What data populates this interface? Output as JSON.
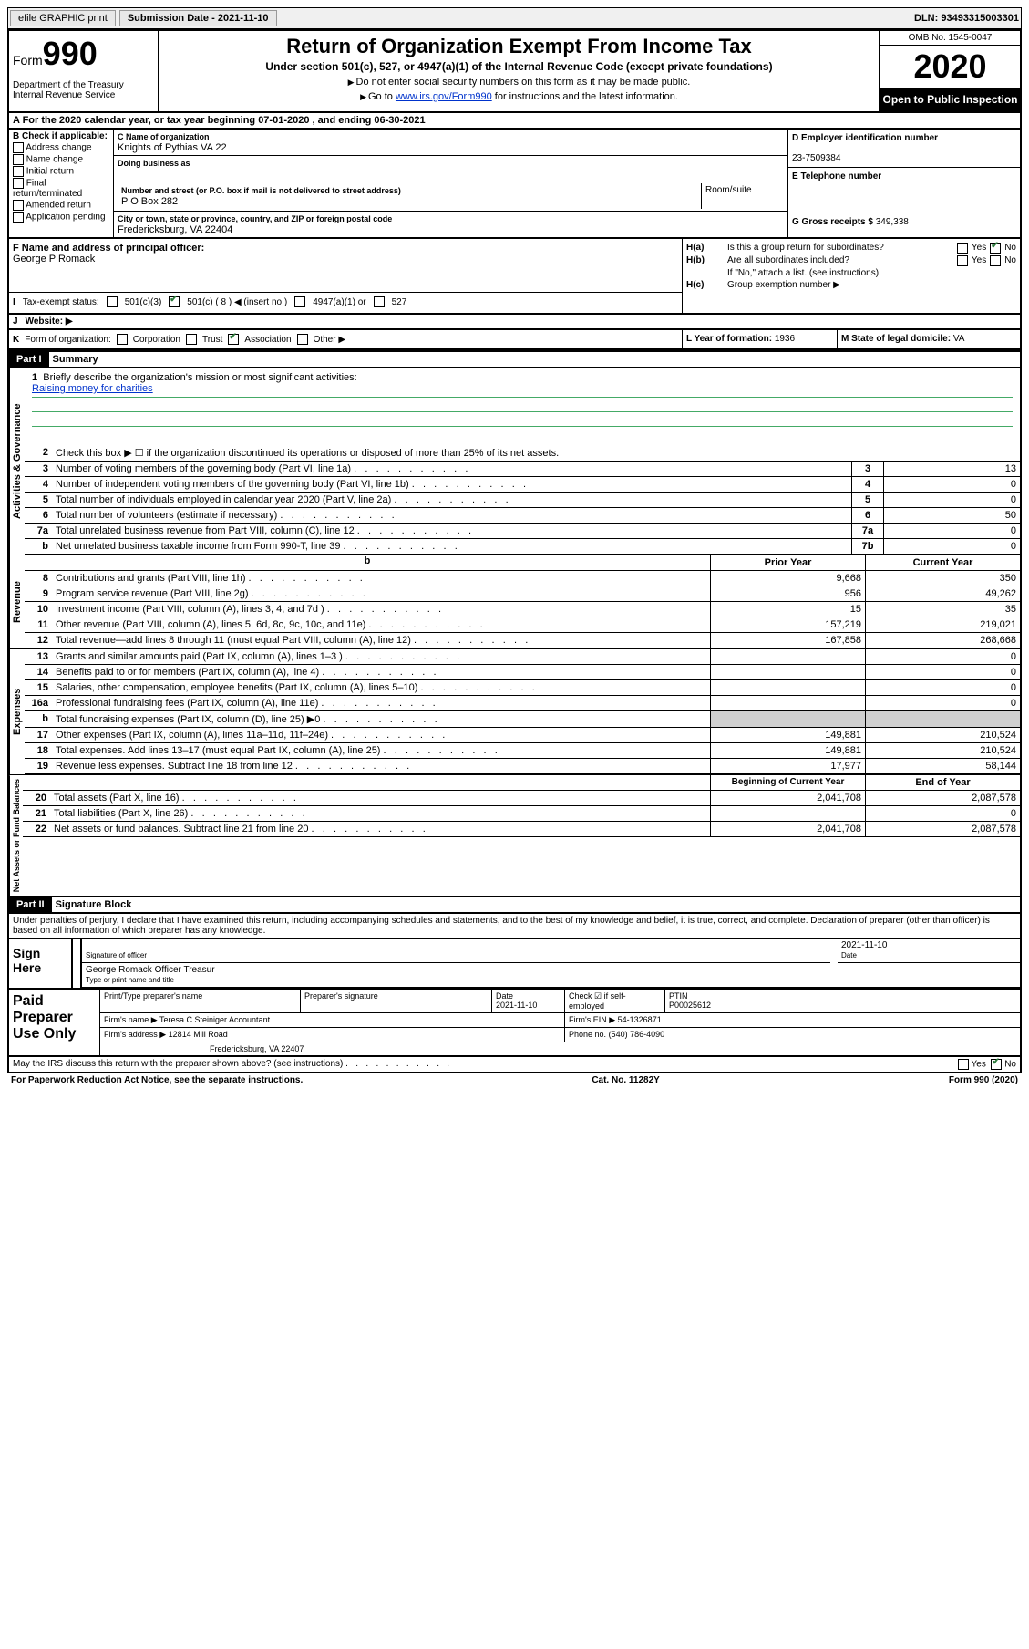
{
  "topbar": {
    "efile": "efile GRAPHIC print",
    "submission_label": "Submission Date - 2021-11-10",
    "dln": "DLN: 93493315003301"
  },
  "header": {
    "form_label": "Form",
    "form_num": "990",
    "dept": "Department of the Treasury\nInternal Revenue Service",
    "title": "Return of Organization Exempt From Income Tax",
    "sub1": "Under section 501(c), 527, or 4947(a)(1) of the Internal Revenue Code (except private foundations)",
    "sub2a": "Do not enter social security numbers on this form as it may be made public.",
    "sub2b_pre": "Go to ",
    "sub2b_link": "www.irs.gov/Form990",
    "sub2b_post": " for instructions and the latest information.",
    "omb": "OMB No. 1545-0047",
    "year": "2020",
    "inspect": "Open to Public Inspection"
  },
  "row_a": "A For the 2020 calendar year, or tax year beginning 07-01-2020   , and ending 06-30-2021",
  "section_b": {
    "hdr": "B Check if applicable:",
    "opts": [
      "Address change",
      "Name change",
      "Initial return",
      "Final return/terminated",
      "Amended return",
      "Application pending"
    ]
  },
  "section_c": {
    "name_lbl": "C Name of organization",
    "name": "Knights of Pythias VA 22",
    "dba_lbl": "Doing business as",
    "addr_lbl": "Number and street (or P.O. box if mail is not delivered to street address)",
    "room_lbl": "Room/suite",
    "addr": "P O Box 282",
    "city_lbl": "City or town, state or province, country, and ZIP or foreign postal code",
    "city": "Fredericksburg, VA  22404"
  },
  "section_d": {
    "lbl": "D Employer identification number",
    "val": "23-7509384"
  },
  "section_e": {
    "lbl": "E Telephone number",
    "val": ""
  },
  "section_g": {
    "lbl": "G Gross receipts $",
    "val": "349,338"
  },
  "section_f": {
    "lbl": "F  Name and address of principal officer:",
    "val": "George P Romack"
  },
  "section_h": {
    "a_lbl": "H(a)",
    "a_txt": "Is this a group return for subordinates?",
    "a_yes": "Yes",
    "a_no": "No",
    "b_lbl": "H(b)",
    "b_txt": "Are all subordinates included?",
    "b_note": "If \"No,\" attach a list. (see instructions)",
    "c_lbl": "H(c)",
    "c_txt": "Group exemption number ▶"
  },
  "tax_status": {
    "i": "I",
    "lbl": "Tax-exempt status:",
    "o1": "501(c)(3)",
    "o2": "501(c) ( 8 ) ◀ (insert no.)",
    "o3": "4947(a)(1) or",
    "o4": "527"
  },
  "website": {
    "j": "J",
    "lbl": "Website: ▶"
  },
  "section_k": {
    "k": "K",
    "lbl": "Form of organization:",
    "o1": "Corporation",
    "o2": "Trust",
    "o3": "Association",
    "o4": "Other ▶"
  },
  "section_l": {
    "lbl": "L Year of formation:",
    "val": "1936"
  },
  "section_m": {
    "lbl": "M State of legal domicile:",
    "val": "VA"
  },
  "part1": {
    "hdr": "Part I",
    "title": "Summary",
    "tab_gov": "Activities & Governance",
    "tab_rev": "Revenue",
    "tab_exp": "Expenses",
    "tab_net": "Net Assets or Fund Balances",
    "q1": "Briefly describe the organization's mission or most significant activities:",
    "mission": "Raising money for charities",
    "q2": "Check this box ▶ ☐ if the organization discontinued its operations or disposed of more than 25% of its net assets.",
    "rows_gov": [
      {
        "n": "3",
        "t": "Number of voting members of the governing body (Part VI, line 1a)",
        "b": "3",
        "v": "13"
      },
      {
        "n": "4",
        "t": "Number of independent voting members of the governing body (Part VI, line 1b)",
        "b": "4",
        "v": "0"
      },
      {
        "n": "5",
        "t": "Total number of individuals employed in calendar year 2020 (Part V, line 2a)",
        "b": "5",
        "v": "0"
      },
      {
        "n": "6",
        "t": "Total number of volunteers (estimate if necessary)",
        "b": "6",
        "v": "50"
      },
      {
        "n": "7a",
        "t": "Total unrelated business revenue from Part VIII, column (C), line 12",
        "b": "7a",
        "v": "0"
      },
      {
        "n": "b",
        "t": "Net unrelated business taxable income from Form 990-T, line 39",
        "b": "7b",
        "v": "0"
      }
    ],
    "col_prior": "Prior Year",
    "col_curr": "Current Year",
    "rows_rev": [
      {
        "n": "8",
        "t": "Contributions and grants (Part VIII, line 1h)",
        "p": "9,668",
        "c": "350"
      },
      {
        "n": "9",
        "t": "Program service revenue (Part VIII, line 2g)",
        "p": "956",
        "c": "49,262"
      },
      {
        "n": "10",
        "t": "Investment income (Part VIII, column (A), lines 3, 4, and 7d )",
        "p": "15",
        "c": "35"
      },
      {
        "n": "11",
        "t": "Other revenue (Part VIII, column (A), lines 5, 6d, 8c, 9c, 10c, and 11e)",
        "p": "157,219",
        "c": "219,021"
      },
      {
        "n": "12",
        "t": "Total revenue—add lines 8 through 11 (must equal Part VIII, column (A), line 12)",
        "p": "167,858",
        "c": "268,668"
      }
    ],
    "rows_exp": [
      {
        "n": "13",
        "t": "Grants and similar amounts paid (Part IX, column (A), lines 1–3 )",
        "p": "",
        "c": "0"
      },
      {
        "n": "14",
        "t": "Benefits paid to or for members (Part IX, column (A), line 4)",
        "p": "",
        "c": "0"
      },
      {
        "n": "15",
        "t": "Salaries, other compensation, employee benefits (Part IX, column (A), lines 5–10)",
        "p": "",
        "c": "0"
      },
      {
        "n": "16a",
        "t": "Professional fundraising fees (Part IX, column (A), line 11e)",
        "p": "",
        "c": "0"
      },
      {
        "n": "b",
        "t": "Total fundraising expenses (Part IX, column (D), line 25) ▶0",
        "p": "SHADE",
        "c": "SHADE"
      },
      {
        "n": "17",
        "t": "Other expenses (Part IX, column (A), lines 11a–11d, 11f–24e)",
        "p": "149,881",
        "c": "210,524"
      },
      {
        "n": "18",
        "t": "Total expenses. Add lines 13–17 (must equal Part IX, column (A), line 25)",
        "p": "149,881",
        "c": "210,524"
      },
      {
        "n": "19",
        "t": "Revenue less expenses. Subtract line 18 from line 12",
        "p": "17,977",
        "c": "58,144"
      }
    ],
    "col_begin": "Beginning of Current Year",
    "col_end": "End of Year",
    "rows_net": [
      {
        "n": "20",
        "t": "Total assets (Part X, line 16)",
        "p": "2,041,708",
        "c": "2,087,578"
      },
      {
        "n": "21",
        "t": "Total liabilities (Part X, line 26)",
        "p": "",
        "c": "0"
      },
      {
        "n": "22",
        "t": "Net assets or fund balances. Subtract line 21 from line 20",
        "p": "2,041,708",
        "c": "2,087,578"
      }
    ]
  },
  "part2": {
    "hdr": "Part II",
    "title": "Signature Block",
    "decl": "Under penalties of perjury, I declare that I have examined this return, including accompanying schedules and statements, and to the best of my knowledge and belief, it is true, correct, and complete. Declaration of preparer (other than officer) is based on all information of which preparer has any knowledge.",
    "sign_here": "Sign Here",
    "sig_officer": "Signature of officer",
    "sig_date": "2021-11-10",
    "date_lbl": "Date",
    "officer_name": "George Romack Officer Treasur",
    "type_lbl": "Type or print name and title",
    "paid_prep": "Paid Preparer Use Only",
    "prep_name_lbl": "Print/Type preparer's name",
    "prep_sig_lbl": "Preparer's signature",
    "prep_date": "2021-11-10",
    "check_self": "Check ☑ if self-employed",
    "ptin_lbl": "PTIN",
    "ptin": "P00025612",
    "firm_name_lbl": "Firm's name   ▶",
    "firm_name": "Teresa C Steiniger Accountant",
    "firm_ein_lbl": "Firm's EIN ▶",
    "firm_ein": "54-1326871",
    "firm_addr_lbl": "Firm's address ▶",
    "firm_addr1": "12814 Mill Road",
    "firm_addr2": "Fredericksburg, VA  22407",
    "phone_lbl": "Phone no.",
    "phone": "(540) 786-4090",
    "irs_discuss": "May the IRS discuss this return with the preparer shown above? (see instructions)",
    "yes": "Yes",
    "no": "No"
  },
  "footer": {
    "paperwork": "For Paperwork Reduction Act Notice, see the separate instructions.",
    "cat": "Cat. No. 11282Y",
    "form": "Form 990 (2020)"
  }
}
